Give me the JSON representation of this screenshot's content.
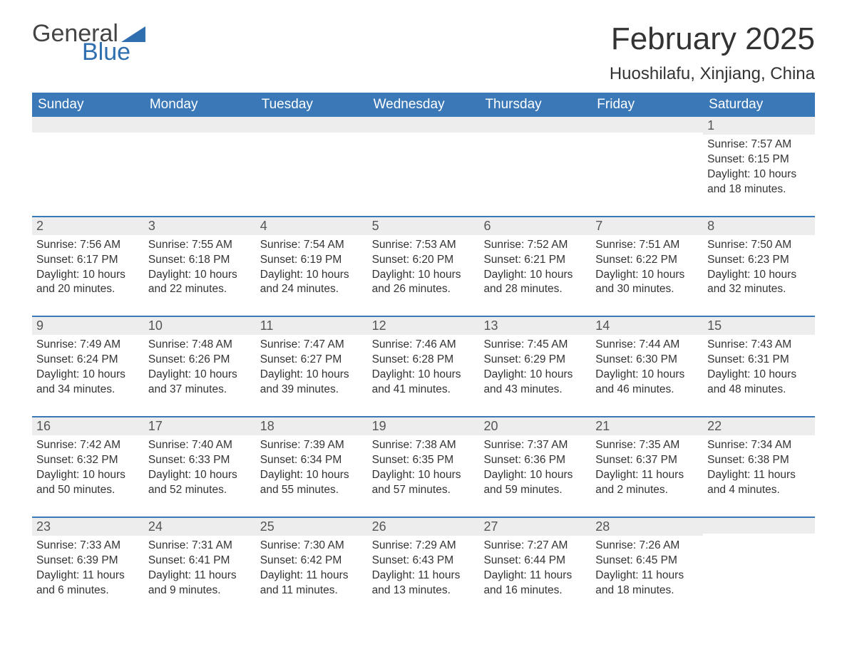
{
  "brand": {
    "word1": "General",
    "word2": "Blue"
  },
  "title": "February 2025",
  "location": "Huoshilafu, Xinjiang, China",
  "colors": {
    "header_bg": "#3a78b7",
    "header_text": "#ffffff",
    "daynum_bg": "#ededed",
    "rule": "#3a78b7",
    "text": "#333333",
    "logo_blue": "#2f6fb0"
  },
  "weekdays": [
    "Sunday",
    "Monday",
    "Tuesday",
    "Wednesday",
    "Thursday",
    "Friday",
    "Saturday"
  ],
  "weeks": [
    [
      null,
      null,
      null,
      null,
      null,
      null,
      {
        "n": "1",
        "sunrise": "Sunrise: 7:57 AM",
        "sunset": "Sunset: 6:15 PM",
        "daylight": "Daylight: 10 hours and 18 minutes."
      }
    ],
    [
      {
        "n": "2",
        "sunrise": "Sunrise: 7:56 AM",
        "sunset": "Sunset: 6:17 PM",
        "daylight": "Daylight: 10 hours and 20 minutes."
      },
      {
        "n": "3",
        "sunrise": "Sunrise: 7:55 AM",
        "sunset": "Sunset: 6:18 PM",
        "daylight": "Daylight: 10 hours and 22 minutes."
      },
      {
        "n": "4",
        "sunrise": "Sunrise: 7:54 AM",
        "sunset": "Sunset: 6:19 PM",
        "daylight": "Daylight: 10 hours and 24 minutes."
      },
      {
        "n": "5",
        "sunrise": "Sunrise: 7:53 AM",
        "sunset": "Sunset: 6:20 PM",
        "daylight": "Daylight: 10 hours and 26 minutes."
      },
      {
        "n": "6",
        "sunrise": "Sunrise: 7:52 AM",
        "sunset": "Sunset: 6:21 PM",
        "daylight": "Daylight: 10 hours and 28 minutes."
      },
      {
        "n": "7",
        "sunrise": "Sunrise: 7:51 AM",
        "sunset": "Sunset: 6:22 PM",
        "daylight": "Daylight: 10 hours and 30 minutes."
      },
      {
        "n": "8",
        "sunrise": "Sunrise: 7:50 AM",
        "sunset": "Sunset: 6:23 PM",
        "daylight": "Daylight: 10 hours and 32 minutes."
      }
    ],
    [
      {
        "n": "9",
        "sunrise": "Sunrise: 7:49 AM",
        "sunset": "Sunset: 6:24 PM",
        "daylight": "Daylight: 10 hours and 34 minutes."
      },
      {
        "n": "10",
        "sunrise": "Sunrise: 7:48 AM",
        "sunset": "Sunset: 6:26 PM",
        "daylight": "Daylight: 10 hours and 37 minutes."
      },
      {
        "n": "11",
        "sunrise": "Sunrise: 7:47 AM",
        "sunset": "Sunset: 6:27 PM",
        "daylight": "Daylight: 10 hours and 39 minutes."
      },
      {
        "n": "12",
        "sunrise": "Sunrise: 7:46 AM",
        "sunset": "Sunset: 6:28 PM",
        "daylight": "Daylight: 10 hours and 41 minutes."
      },
      {
        "n": "13",
        "sunrise": "Sunrise: 7:45 AM",
        "sunset": "Sunset: 6:29 PM",
        "daylight": "Daylight: 10 hours and 43 minutes."
      },
      {
        "n": "14",
        "sunrise": "Sunrise: 7:44 AM",
        "sunset": "Sunset: 6:30 PM",
        "daylight": "Daylight: 10 hours and 46 minutes."
      },
      {
        "n": "15",
        "sunrise": "Sunrise: 7:43 AM",
        "sunset": "Sunset: 6:31 PM",
        "daylight": "Daylight: 10 hours and 48 minutes."
      }
    ],
    [
      {
        "n": "16",
        "sunrise": "Sunrise: 7:42 AM",
        "sunset": "Sunset: 6:32 PM",
        "daylight": "Daylight: 10 hours and 50 minutes."
      },
      {
        "n": "17",
        "sunrise": "Sunrise: 7:40 AM",
        "sunset": "Sunset: 6:33 PM",
        "daylight": "Daylight: 10 hours and 52 minutes."
      },
      {
        "n": "18",
        "sunrise": "Sunrise: 7:39 AM",
        "sunset": "Sunset: 6:34 PM",
        "daylight": "Daylight: 10 hours and 55 minutes."
      },
      {
        "n": "19",
        "sunrise": "Sunrise: 7:38 AM",
        "sunset": "Sunset: 6:35 PM",
        "daylight": "Daylight: 10 hours and 57 minutes."
      },
      {
        "n": "20",
        "sunrise": "Sunrise: 7:37 AM",
        "sunset": "Sunset: 6:36 PM",
        "daylight": "Daylight: 10 hours and 59 minutes."
      },
      {
        "n": "21",
        "sunrise": "Sunrise: 7:35 AM",
        "sunset": "Sunset: 6:37 PM",
        "daylight": "Daylight: 11 hours and 2 minutes."
      },
      {
        "n": "22",
        "sunrise": "Sunrise: 7:34 AM",
        "sunset": "Sunset: 6:38 PM",
        "daylight": "Daylight: 11 hours and 4 minutes."
      }
    ],
    [
      {
        "n": "23",
        "sunrise": "Sunrise: 7:33 AM",
        "sunset": "Sunset: 6:39 PM",
        "daylight": "Daylight: 11 hours and 6 minutes."
      },
      {
        "n": "24",
        "sunrise": "Sunrise: 7:31 AM",
        "sunset": "Sunset: 6:41 PM",
        "daylight": "Daylight: 11 hours and 9 minutes."
      },
      {
        "n": "25",
        "sunrise": "Sunrise: 7:30 AM",
        "sunset": "Sunset: 6:42 PM",
        "daylight": "Daylight: 11 hours and 11 minutes."
      },
      {
        "n": "26",
        "sunrise": "Sunrise: 7:29 AM",
        "sunset": "Sunset: 6:43 PM",
        "daylight": "Daylight: 11 hours and 13 minutes."
      },
      {
        "n": "27",
        "sunrise": "Sunrise: 7:27 AM",
        "sunset": "Sunset: 6:44 PM",
        "daylight": "Daylight: 11 hours and 16 minutes."
      },
      {
        "n": "28",
        "sunrise": "Sunrise: 7:26 AM",
        "sunset": "Sunset: 6:45 PM",
        "daylight": "Daylight: 11 hours and 18 minutes."
      },
      null
    ]
  ]
}
